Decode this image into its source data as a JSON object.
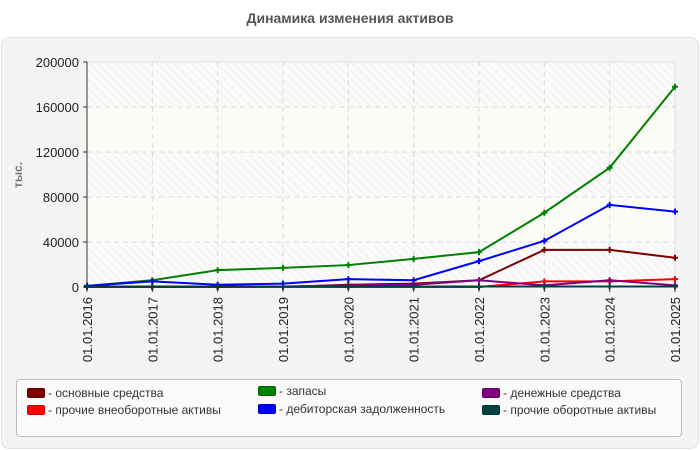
{
  "chart_data": {
    "type": "line",
    "title": "Динамика изменения активов",
    "xlabel": "",
    "ylabel": "тыс.",
    "ylim": [
      0,
      200000
    ],
    "yticks": [
      0,
      40000,
      80000,
      120000,
      160000,
      200000
    ],
    "grid": true,
    "legend_position": "bottom",
    "categories": [
      "01.01.2016",
      "01.01.2017",
      "01.01.2018",
      "01.01.2019",
      "01.01.2020",
      "01.01.2021",
      "01.01.2022",
      "01.01.2023",
      "01.01.2024",
      "01.01.2025"
    ],
    "series": [
      {
        "name": "основные средства",
        "color": "#800000",
        "values": [
          0,
          0,
          0,
          0,
          2000,
          3000,
          6000,
          33000,
          33000,
          26000
        ]
      },
      {
        "name": "прочие внеоборотные активы",
        "color": "#ff0000",
        "values": [
          0,
          0,
          0,
          0,
          0,
          0,
          0,
          5000,
          5000,
          7000
        ]
      },
      {
        "name": "запасы",
        "color": "#008000",
        "values": [
          1000,
          6000,
          15000,
          17000,
          19500,
          25000,
          31000,
          66000,
          106000,
          178000
        ]
      },
      {
        "name": "дебиторская задолженность",
        "color": "#0000ff",
        "values": [
          1000,
          5000,
          2000,
          3000,
          7000,
          6000,
          23000,
          41000,
          73000,
          67000
        ]
      },
      {
        "name": "денежные средства",
        "color": "#800080",
        "values": [
          0,
          0,
          0,
          500,
          1500,
          2000,
          6000,
          1500,
          6000,
          1500
        ]
      },
      {
        "name": "прочие оборотные активы",
        "color": "#004040",
        "values": [
          500,
          500,
          500,
          500,
          500,
          500,
          500,
          500,
          500,
          500
        ]
      }
    ]
  },
  "legend": [
    {
      "label": "- основные средства",
      "color": "#800000"
    },
    {
      "label": "- запасы",
      "color": "#008000"
    },
    {
      "label": "- денежные средства",
      "color": "#800080"
    },
    {
      "label": "- прочие внеоборотные активы",
      "color": "#ff0000"
    },
    {
      "label": "- дебиторская задолженность",
      "color": "#0000ff"
    },
    {
      "label": "- прочие оборотные активы",
      "color": "#004040"
    }
  ]
}
